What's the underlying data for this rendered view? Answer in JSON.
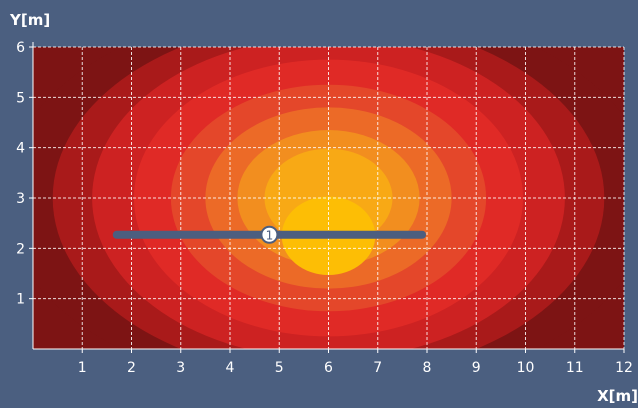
{
  "chart_data": {
    "type": "heatmap",
    "xlabel": "X[m]",
    "ylabel": "Y[m]",
    "xlim": [
      0,
      12
    ],
    "ylim": [
      0,
      6
    ],
    "x_ticks": [
      1,
      2,
      3,
      4,
      5,
      6,
      7,
      8,
      9,
      10,
      11,
      12
    ],
    "y_ticks": [
      1,
      2,
      3,
      4,
      5,
      6
    ],
    "grid": true,
    "levels": [
      {
        "color": "#7d1414",
        "rx": 6.6,
        "ry": 3.9
      },
      {
        "color": "#a91a1a",
        "rx": 5.6,
        "ry": 3.55
      },
      {
        "color": "#cd2222",
        "rx": 4.8,
        "ry": 3.2
      },
      {
        "color": "#e02a26",
        "rx": 3.95,
        "ry": 2.75
      },
      {
        "color": "#e4472a",
        "rx": 3.2,
        "ry": 2.25
      },
      {
        "color": "#ec6a27",
        "rx": 2.5,
        "ry": 1.8
      },
      {
        "color": "#f28e1f",
        "rx": 1.85,
        "ry": 1.35
      },
      {
        "color": "#f8a915",
        "rx": 1.3,
        "ry": 0.98
      }
    ],
    "hotspot": {
      "center": [
        6.0,
        2.25
      ],
      "rx": 0.95,
      "ry": 0.78,
      "color": "#fdbe05"
    },
    "luminaire": {
      "x_start": 1.7,
      "x_end": 7.9,
      "y": 2.27,
      "marker_x": 4.8,
      "label": "1",
      "color": "#4c5e7f"
    }
  }
}
